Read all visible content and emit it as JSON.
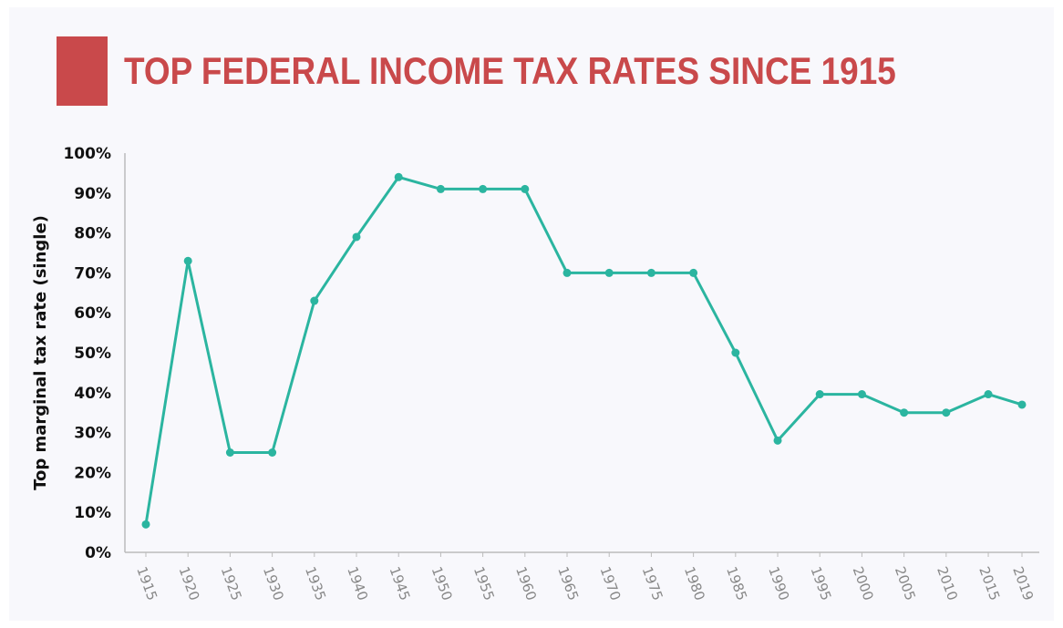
{
  "colors": {
    "accent": "#c9494b",
    "line": "#2bb5a0",
    "axis": "#bbbbbb",
    "background": "#f8f8fc"
  },
  "chart_data": {
    "type": "line",
    "title": "TOP FEDERAL INCOME TAX RATES SINCE 1915",
    "ylabel": "Top marginal tax rate (single)",
    "xlabel": "",
    "ylim": [
      0,
      100
    ],
    "yticks": [
      "0%",
      "10%",
      "20%",
      "30%",
      "40%",
      "50%",
      "60%",
      "70%",
      "80%",
      "90%",
      "100%"
    ],
    "grid": false,
    "categories": [
      "1915",
      "1920",
      "1925",
      "1930",
      "1935",
      "1940",
      "1945",
      "1950",
      "1955",
      "1960",
      "1965",
      "1970",
      "1975",
      "1980",
      "1985",
      "1990",
      "1995",
      "2000",
      "2005",
      "2010",
      "2015",
      "2019"
    ],
    "values": [
      7,
      73,
      25,
      25,
      63,
      79,
      94,
      91,
      91,
      91,
      70,
      70,
      70,
      70,
      50,
      28,
      39.6,
      39.6,
      35,
      35,
      39.6,
      37
    ]
  }
}
